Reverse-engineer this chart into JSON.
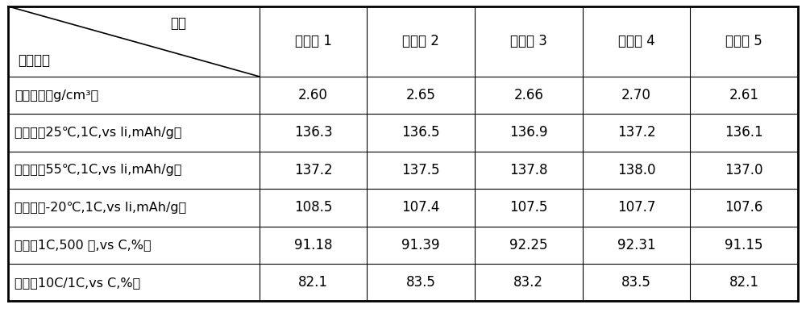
{
  "col_headers": [
    "实施例 1",
    "实施例 2",
    "实施例 3",
    "实施例 4",
    "实施例 5"
  ],
  "row_headers": [
    "振实密度（g/cm³）",
    "比容量（25℃,1C,vs li,mAh/g）",
    "比容量（55℃,1C,vs li,mAh/g）",
    "比容量（-20℃,1C,vs li,mAh/g）",
    "循环（1C,500 次,vs C,%）",
    "倍率（10C/1C,vs C,%）"
  ],
  "data": [
    [
      "2.60",
      "2.65",
      "2.66",
      "2.70",
      "2.61"
    ],
    [
      "136.3",
      "136.5",
      "136.9",
      "137.2",
      "136.1"
    ],
    [
      "137.2",
      "137.5",
      "137.8",
      "138.0",
      "137.0"
    ],
    [
      "108.5",
      "107.4",
      "107.5",
      "107.7",
      "107.6"
    ],
    [
      "91.18",
      "91.39",
      "92.25",
      "92.31",
      "91.15"
    ],
    [
      "82.1",
      "83.5",
      "83.2",
      "83.5",
      "82.1"
    ]
  ],
  "header_top_left_line1": "样品",
  "header_top_left_line2": "测试项目",
  "bg_color": "#ffffff",
  "border_color": "#000000",
  "text_color": "#000000",
  "font_size": 12
}
